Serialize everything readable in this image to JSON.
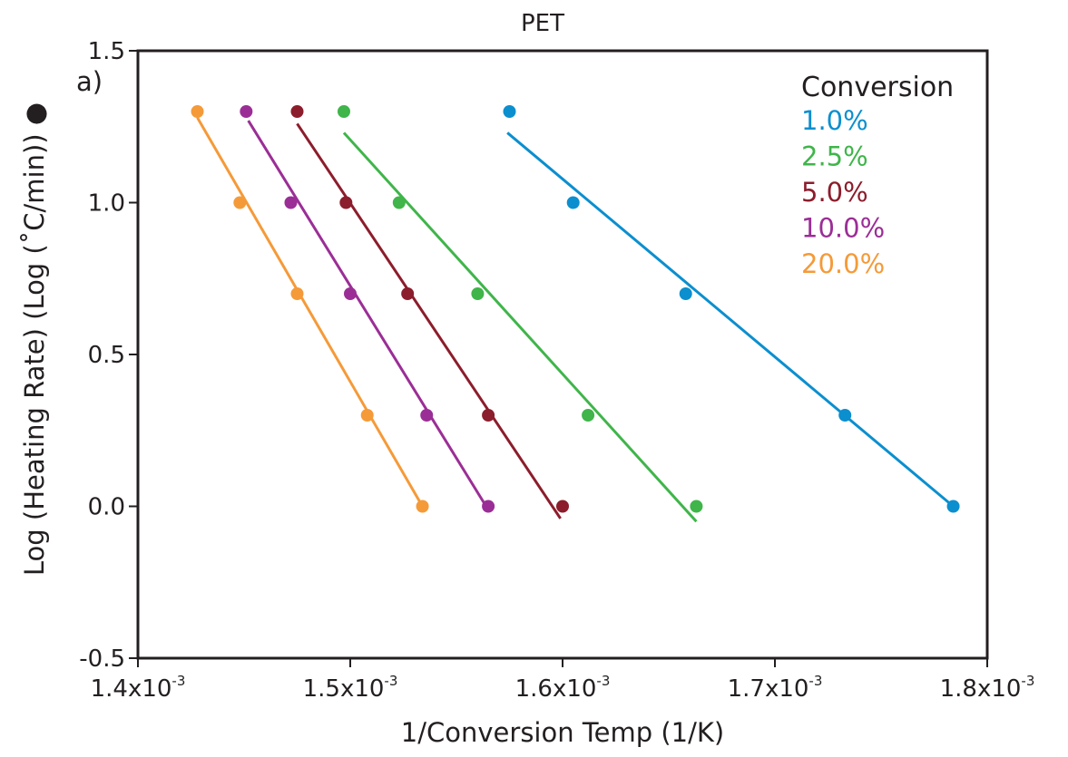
{
  "chart_data": {
    "type": "scatter",
    "title": "PET",
    "panel_label": "a)",
    "xlabel": "1/Conversion Temp (1/K)",
    "ylabel": "Log (Heating Rate)  (Log (˚C/min)) ●",
    "xlim": [
      0.0014,
      0.0018
    ],
    "ylim": [
      -0.5,
      1.5
    ],
    "x_ticks": [
      {
        "value": 0.0014,
        "base": "1.4x10",
        "exp": "-3"
      },
      {
        "value": 0.0015,
        "base": "1.5x10",
        "exp": "-3"
      },
      {
        "value": 0.0016,
        "base": "1.6x10",
        "exp": "-3"
      },
      {
        "value": 0.0017,
        "base": "1.7x10",
        "exp": "-3"
      },
      {
        "value": 0.0018,
        "base": "1.8x10",
        "exp": "-3"
      }
    ],
    "y_ticks": [
      {
        "value": 1.5,
        "label": "1.5"
      },
      {
        "value": 1.0,
        "label": "1.0"
      },
      {
        "value": 0.5,
        "label": "0.5"
      },
      {
        "value": 0.0,
        "label": "0.0"
      },
      {
        "value": -0.5,
        "label": "-0.5"
      }
    ],
    "legend_title": "Conversion",
    "legend_position": "top-right",
    "series": [
      {
        "name": "1.0%",
        "color": "#0b8fcf",
        "points": [
          [
            0.001575,
            1.3
          ],
          [
            0.001605,
            1.0
          ],
          [
            0.001658,
            0.7
          ],
          [
            0.001733,
            0.3
          ],
          [
            0.001784,
            0.0
          ]
        ],
        "fit": [
          [
            0.001574,
            1.23
          ],
          [
            0.001784,
            0.0
          ]
        ]
      },
      {
        "name": "2.5%",
        "color": "#3fb54a",
        "points": [
          [
            0.001497,
            1.3
          ],
          [
            0.001523,
            1.0
          ],
          [
            0.00156,
            0.7
          ],
          [
            0.001612,
            0.3
          ],
          [
            0.001663,
            0.0
          ]
        ],
        "fit": [
          [
            0.001497,
            1.23
          ],
          [
            0.001663,
            -0.05
          ]
        ]
      },
      {
        "name": "5.0%",
        "color": "#8c1d2c",
        "points": [
          [
            0.001475,
            1.3
          ],
          [
            0.001498,
            1.0
          ],
          [
            0.001527,
            0.7
          ],
          [
            0.001565,
            0.3
          ],
          [
            0.0016,
            0.0
          ]
        ],
        "fit": [
          [
            0.001475,
            1.26
          ],
          [
            0.001599,
            -0.04
          ]
        ]
      },
      {
        "name": "10.0%",
        "color": "#9b2e96",
        "points": [
          [
            0.001451,
            1.3
          ],
          [
            0.001472,
            1.0
          ],
          [
            0.0015,
            0.7
          ],
          [
            0.001536,
            0.3
          ],
          [
            0.001565,
            0.0
          ]
        ],
        "fit": [
          [
            0.001452,
            1.27
          ],
          [
            0.001564,
            0.0
          ]
        ]
      },
      {
        "name": "20.0%",
        "color": "#f59a38",
        "points": [
          [
            0.001428,
            1.3
          ],
          [
            0.001448,
            1.0
          ],
          [
            0.001475,
            0.7
          ],
          [
            0.001508,
            0.3
          ],
          [
            0.001534,
            0.0
          ]
        ],
        "fit": [
          [
            0.001428,
            1.28
          ],
          [
            0.001534,
            0.0
          ]
        ]
      }
    ]
  }
}
